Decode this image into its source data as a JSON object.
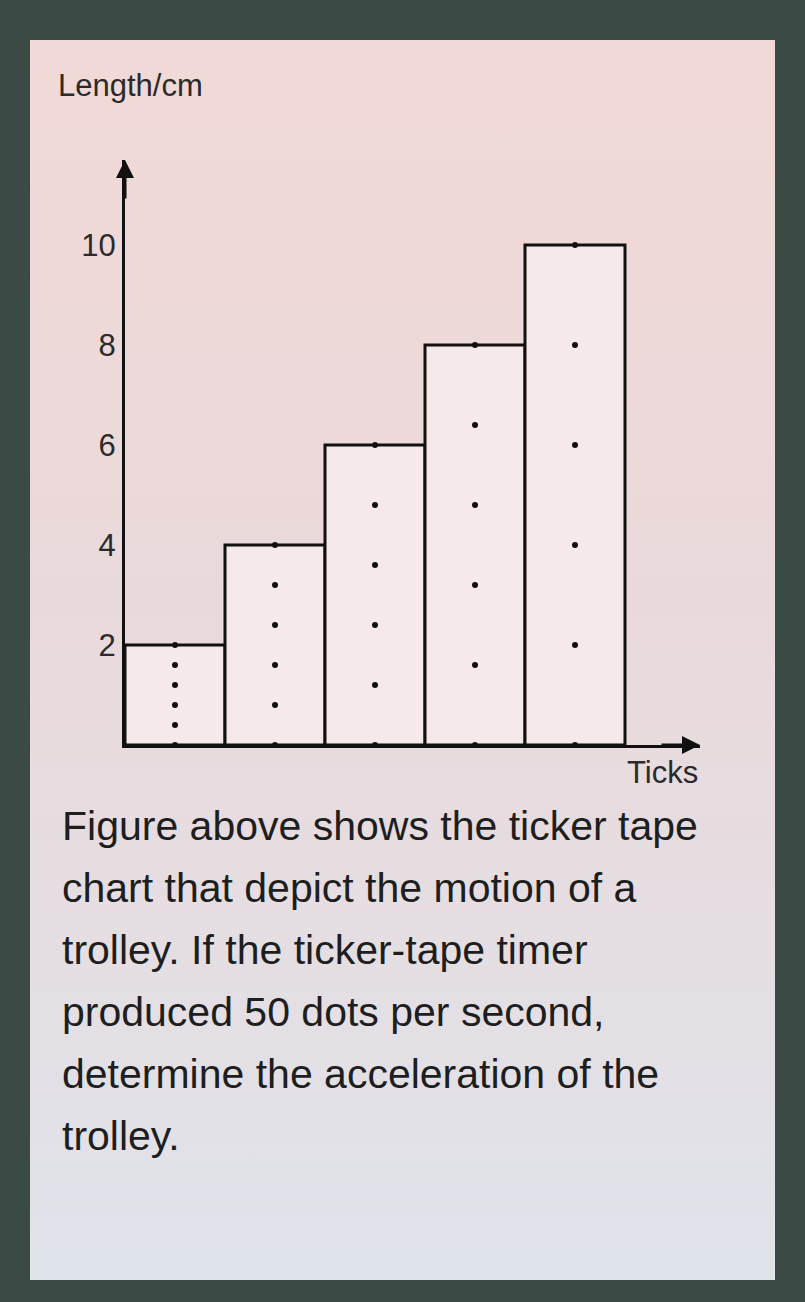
{
  "chart_data": {
    "type": "bar",
    "y_label": "Length/cm",
    "x_label": "Ticks",
    "categories": [
      null,
      null,
      null,
      null,
      null
    ],
    "values": [
      2,
      4,
      6,
      8,
      10
    ],
    "color": "#f5e9e9",
    "ylim": [
      0,
      11.7
    ],
    "yticks": [
      2,
      4,
      6,
      8,
      10
    ],
    "grid": false,
    "tick_labels": "y",
    "marker": "dots"
  },
  "caption": "Figure above shows the ticker tape chart that depict the motion of a trolley. If the ticker-tape timer produced 50 dots per second, determine the acceleration of the trolley."
}
